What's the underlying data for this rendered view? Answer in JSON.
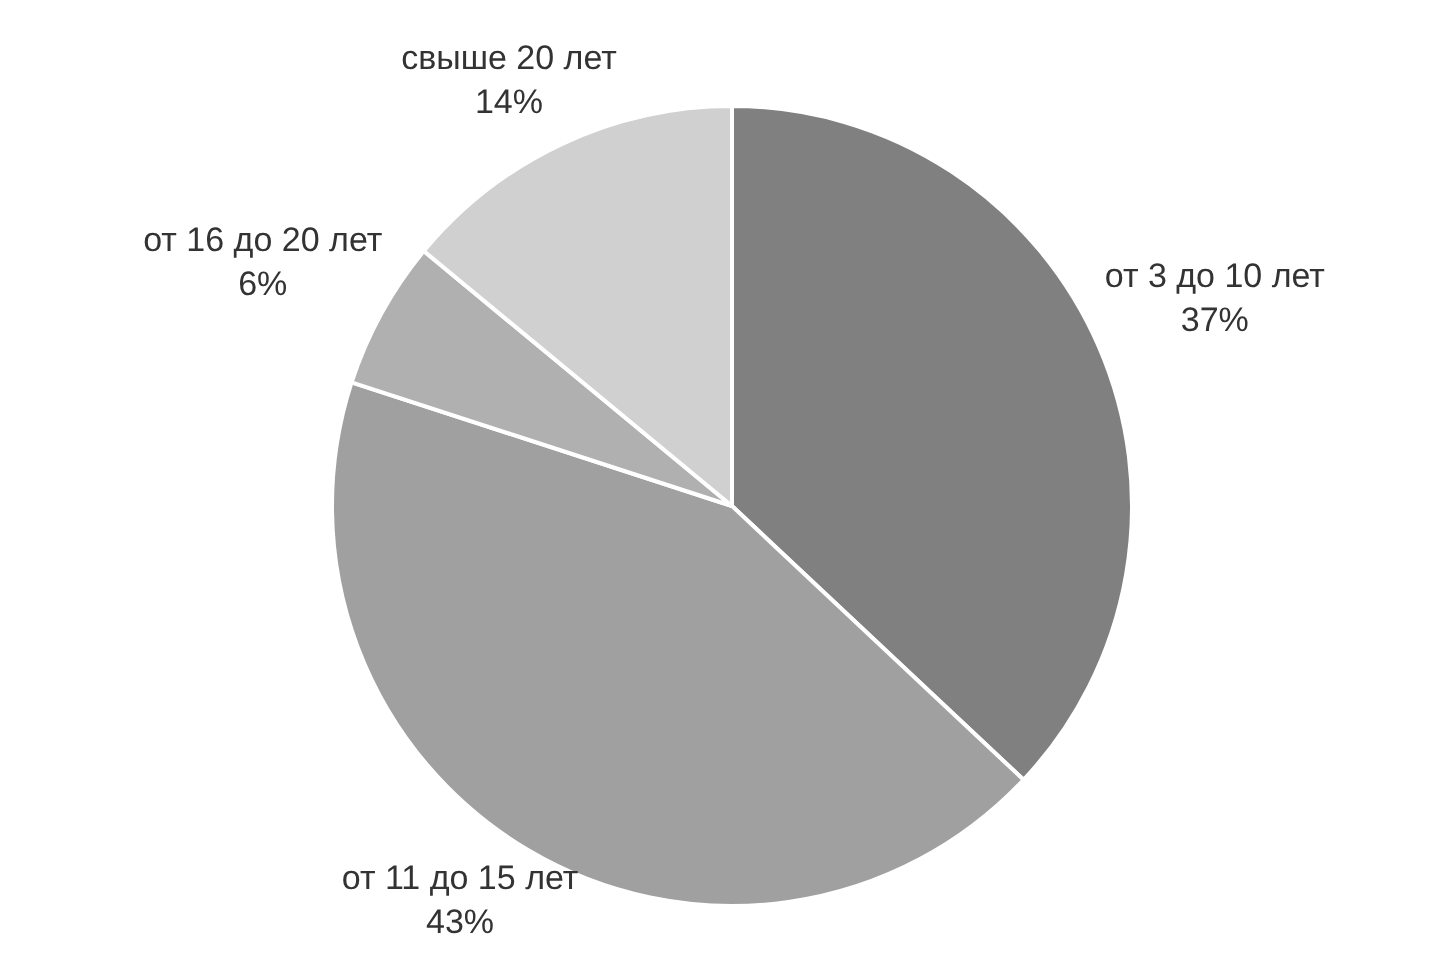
{
  "chart_data": {
    "type": "pie",
    "categories": [
      "от 3 до 10 лет",
      "от 11 до 15 лет",
      "от 16 до 20 лет",
      "свыше 20 лет"
    ],
    "values": [
      37,
      43,
      6,
      14
    ],
    "colors": [
      "#808080",
      "#a0a0a0",
      "#b0b0b0",
      "#d0d0d0"
    ],
    "value_labels": [
      "37%",
      "43%",
      "6%",
      "14%"
    ],
    "legend": false
  }
}
